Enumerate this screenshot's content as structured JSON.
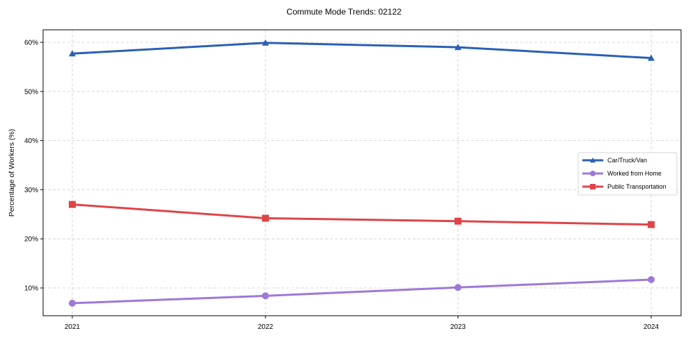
{
  "title": "Commute Mode Trends: 02122",
  "chart_data": {
    "type": "line",
    "title": "Commute Mode Trends: 02122",
    "xlabel": "",
    "ylabel": "Percentage of Workers (%)",
    "categories": [
      "2021",
      "2022",
      "2023",
      "2024"
    ],
    "ylim": [
      4.2,
      62.5
    ],
    "yticks": [
      10,
      20,
      30,
      40,
      50,
      60
    ],
    "ytick_labels": [
      "10%",
      "20%",
      "30%",
      "40%",
      "50%",
      "60%"
    ],
    "grid": true,
    "legend_position": "center right",
    "series": [
      {
        "name": "Car/Truck/Van",
        "values": [
          57.7,
          59.9,
          59.0,
          56.8
        ],
        "color": "#2a5fb4",
        "marker": "triangle"
      },
      {
        "name": "Worked from Home",
        "values": [
          6.9,
          8.4,
          10.1,
          11.7
        ],
        "color": "#9d78d8",
        "marker": "circle"
      },
      {
        "name": "Public Transportation",
        "values": [
          27.0,
          24.2,
          23.6,
          22.9
        ],
        "color": "#de4448",
        "marker": "square"
      }
    ]
  }
}
